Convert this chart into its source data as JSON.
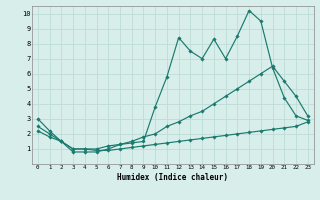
{
  "xlabel": "Humidex (Indice chaleur)",
  "xlim": [
    -0.5,
    23.5
  ],
  "ylim": [
    0,
    10.5
  ],
  "xticks": [
    0,
    1,
    2,
    3,
    4,
    5,
    6,
    7,
    8,
    9,
    10,
    11,
    12,
    13,
    14,
    15,
    16,
    17,
    18,
    19,
    20,
    21,
    22,
    23
  ],
  "yticks": [
    1,
    2,
    3,
    4,
    5,
    6,
    7,
    8,
    9,
    10
  ],
  "bg_color": "#d8eeeb",
  "grid_color": "#bddbd7",
  "line_color": "#1a7a6e",
  "series1_x": [
    0,
    1,
    2,
    3,
    4,
    5,
    6,
    7,
    8,
    9,
    10,
    11,
    12,
    13,
    14,
    15,
    16,
    17,
    18,
    19,
    20,
    21,
    22,
    23
  ],
  "series1_y": [
    3.0,
    2.2,
    1.5,
    0.8,
    0.8,
    0.8,
    1.0,
    1.3,
    1.4,
    1.5,
    3.8,
    5.8,
    8.4,
    7.5,
    7.0,
    8.3,
    7.0,
    8.5,
    10.2,
    9.5,
    6.4,
    4.4,
    3.2,
    2.9
  ],
  "series2_x": [
    0,
    1,
    2,
    3,
    4,
    5,
    6,
    7,
    8,
    9,
    10,
    11,
    12,
    13,
    14,
    15,
    16,
    17,
    18,
    19,
    20,
    21,
    22,
    23
  ],
  "series2_y": [
    2.5,
    2.0,
    1.5,
    1.0,
    1.0,
    1.0,
    1.2,
    1.3,
    1.5,
    1.8,
    2.0,
    2.5,
    2.8,
    3.2,
    3.5,
    4.0,
    4.5,
    5.0,
    5.5,
    6.0,
    6.5,
    5.5,
    4.5,
    3.2
  ],
  "series3_x": [
    0,
    1,
    2,
    3,
    4,
    5,
    6,
    7,
    8,
    9,
    10,
    11,
    12,
    13,
    14,
    15,
    16,
    17,
    18,
    19,
    20,
    21,
    22,
    23
  ],
  "series3_y": [
    2.2,
    1.8,
    1.5,
    1.0,
    1.0,
    0.9,
    0.9,
    1.0,
    1.1,
    1.2,
    1.3,
    1.4,
    1.5,
    1.6,
    1.7,
    1.8,
    1.9,
    2.0,
    2.1,
    2.2,
    2.3,
    2.4,
    2.5,
    2.8
  ]
}
